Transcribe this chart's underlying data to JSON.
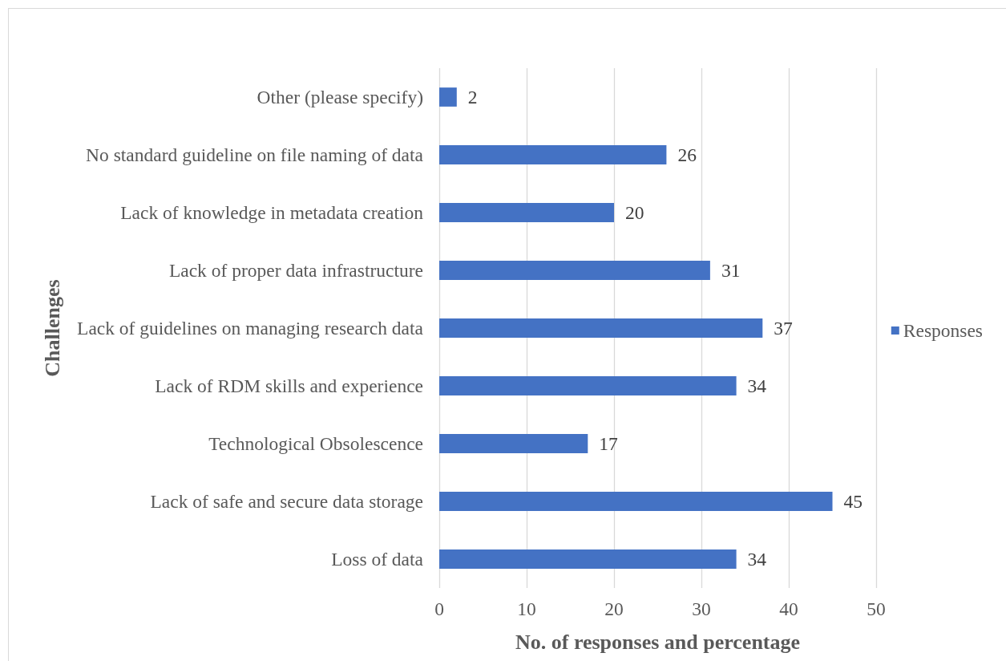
{
  "chart_data": {
    "type": "bar",
    "orientation": "horizontal",
    "xlabel": "No. of responses and percentage",
    "ylabel": "Challenges",
    "categories": [
      "Other (please specify)",
      "No standard guideline on file naming of data",
      "Lack of knowledge in metadata creation",
      "Lack of proper data infrastructure",
      "Lack of guidelines on managing research data",
      "Lack of RDM skills and experience",
      "Technological Obsolescence",
      "Lack of safe and secure data storage",
      "Loss of data"
    ],
    "series": [
      {
        "name": "Responses",
        "color": "#4472c4",
        "values": [
          2,
          26,
          20,
          31,
          37,
          34,
          17,
          45,
          34
        ]
      }
    ],
    "xlim": [
      0,
      50
    ],
    "xticks": [
      0,
      10,
      20,
      30,
      40,
      50
    ],
    "grid": "x",
    "legend": "right",
    "data_labels": true
  }
}
